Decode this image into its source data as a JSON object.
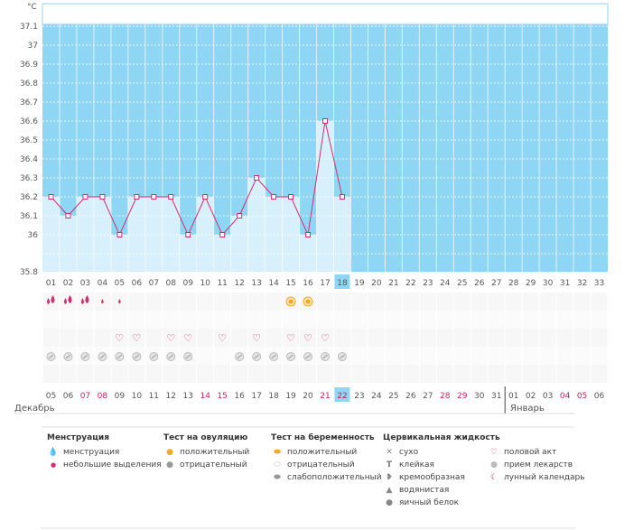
{
  "chart_data": {
    "type": "line",
    "unit": "°C",
    "yticks": [
      "37.1",
      "37",
      "36.9",
      "36.8",
      "36.7",
      "36.6",
      "36.5",
      "36.4",
      "36.3",
      "36.2",
      "36.1",
      "36",
      "35.8"
    ],
    "ylim": [
      35.8,
      37.2
    ],
    "cycle_days": [
      "01",
      "02",
      "03",
      "04",
      "05",
      "06",
      "07",
      "08",
      "09",
      "10",
      "11",
      "12",
      "13",
      "14",
      "15",
      "16",
      "17",
      "18",
      "19",
      "20",
      "21",
      "22",
      "23",
      "24",
      "25",
      "26",
      "27",
      "28",
      "29",
      "30",
      "31",
      "32",
      "33"
    ],
    "current_day_index": 17,
    "temperatures": [
      36.2,
      36.1,
      36.2,
      36.2,
      36.0,
      36.2,
      36.2,
      36.2,
      36.0,
      36.2,
      36.0,
      36.1,
      36.3,
      36.2,
      36.2,
      36.0,
      36.6,
      36.2
    ],
    "dates": [
      "05",
      "06",
      "07",
      "08",
      "09",
      "10",
      "11",
      "12",
      "13",
      "14",
      "15",
      "16",
      "17",
      "18",
      "19",
      "20",
      "21",
      "22",
      "23",
      "24",
      "25",
      "26",
      "27",
      "28",
      "29",
      "30",
      "31",
      "01",
      "02",
      "03",
      "04",
      "05",
      "06"
    ],
    "weekend_date_indices": [
      2,
      3,
      9,
      10,
      16,
      17,
      23,
      24,
      30,
      31
    ],
    "month_start": "Декабрь",
    "month_next": "Январь",
    "next_month_start_index": 27,
    "colors": {
      "past_fill": "#d7f0fc",
      "future_fill": "#8fd6f4",
      "line": "#d42c70",
      "today_badge": "#8fd6f4",
      "grid": "#ffffff"
    },
    "markers": {
      "menstruation": [
        "heavy",
        "heavy",
        "heavy",
        "light",
        "light"
      ],
      "ovulation_test_positive_indices": [
        14,
        15
      ],
      "sex_indices": [
        4,
        5,
        7,
        8,
        10,
        12,
        14,
        15,
        16
      ],
      "medication_indices": [
        0,
        1,
        2,
        3,
        4,
        5,
        6,
        7,
        8,
        11,
        12,
        13,
        14,
        15,
        16,
        17
      ]
    }
  },
  "legend": {
    "menstruation": {
      "title": "Менструация",
      "items": [
        {
          "icon": "drop-pair-icon",
          "label": "менструация"
        },
        {
          "icon": "small-drop-icon",
          "label": "небольшие выделения"
        }
      ]
    },
    "ovulation_test": {
      "title": "Тест на овуляцию",
      "items": [
        {
          "icon": "orange-circle-icon",
          "label": "положительный"
        },
        {
          "icon": "gray-circle-icon",
          "label": "отрицательный"
        }
      ]
    },
    "pregnancy_test": {
      "title": "Тест на беременность",
      "items": [
        {
          "icon": "orange-oval-icon",
          "label": "положительный"
        },
        {
          "icon": "white-oval-icon",
          "label": "отрицательный"
        },
        {
          "icon": "gray-oval-icon",
          "label": "слабоположительный"
        }
      ]
    },
    "cervical_fluid": {
      "title": "Цервикальная жидкость",
      "items": [
        {
          "icon": "cross-icon",
          "label": "сухо"
        },
        {
          "icon": "t-icon",
          "label": "клейкая"
        },
        {
          "icon": "cream-icon",
          "label": "кремообразная"
        },
        {
          "icon": "water-drop-icon",
          "label": "водянистая"
        },
        {
          "icon": "egg-white-icon",
          "label": "яичный белок"
        }
      ]
    },
    "other": {
      "items": [
        {
          "icon": "heart-icon",
          "label": "половой акт"
        },
        {
          "icon": "pill-icon",
          "label": "прием лекарств"
        },
        {
          "icon": "moon-icon",
          "label": "лунный календарь"
        }
      ]
    }
  }
}
